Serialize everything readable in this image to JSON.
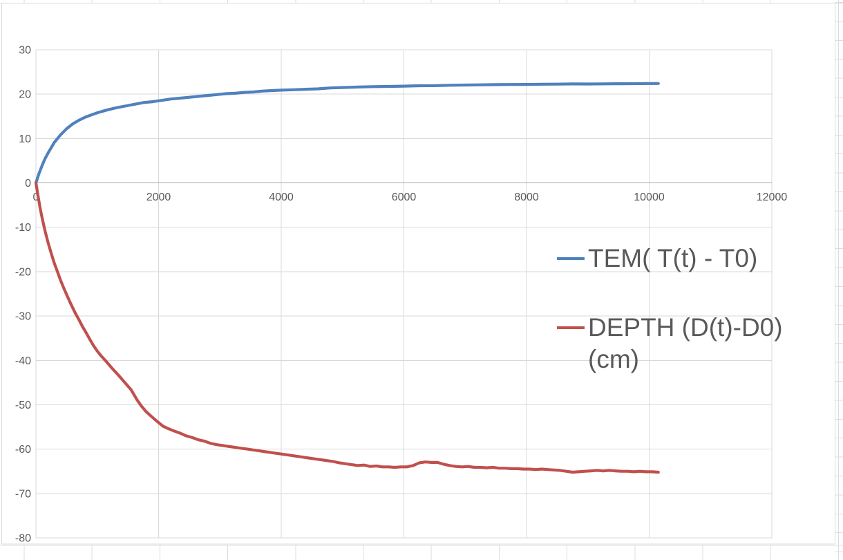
{
  "chart_data": {
    "type": "line",
    "title": "",
    "xlabel": "",
    "ylabel": "",
    "grid": true,
    "legend_position": "right-middle",
    "label_color": "#595959",
    "grid_color": "#D9D9D9",
    "axis_line_color": "#A6A6A6",
    "sheet_grid_color": "#DCDCDC",
    "x_axis": {
      "min": 0,
      "max": 12000,
      "tick_step": 2000,
      "tick_labels": [
        "0",
        "2000",
        "4000",
        "6000",
        "8000",
        "10000",
        "12000"
      ]
    },
    "y_axis": {
      "min": -80,
      "max": 30,
      "tick_step": 10,
      "tick_labels": [
        "30",
        "20",
        "10",
        "0",
        "-10",
        "-20",
        "-30",
        "-40",
        "-50",
        "-60",
        "-70",
        "-80"
      ]
    },
    "series": [
      {
        "name": "TEM( T(t) - T0)",
        "color": "#4F81BD",
        "points": [
          [
            0,
            0
          ],
          [
            50,
            2.1
          ],
          [
            100,
            3.9
          ],
          [
            150,
            5.5
          ],
          [
            200,
            6.8
          ],
          [
            300,
            9.1
          ],
          [
            400,
            10.8
          ],
          [
            500,
            12.2
          ],
          [
            600,
            13.3
          ],
          [
            700,
            14.1
          ],
          [
            800,
            14.8
          ],
          [
            900,
            15.3
          ],
          [
            1000,
            15.8
          ],
          [
            1150,
            16.4
          ],
          [
            1300,
            16.9
          ],
          [
            1450,
            17.3
          ],
          [
            1600,
            17.7
          ],
          [
            1750,
            18.1
          ],
          [
            1900,
            18.3
          ],
          [
            2050,
            18.6
          ],
          [
            2200,
            18.9
          ],
          [
            2350,
            19.1
          ],
          [
            2500,
            19.3
          ],
          [
            2650,
            19.5
          ],
          [
            2800,
            19.7
          ],
          [
            2950,
            19.9
          ],
          [
            3100,
            20.1
          ],
          [
            3250,
            20.2
          ],
          [
            3400,
            20.4
          ],
          [
            3550,
            20.5
          ],
          [
            3700,
            20.7
          ],
          [
            3850,
            20.8
          ],
          [
            4000,
            20.9
          ],
          [
            4200,
            21.0
          ],
          [
            4400,
            21.1
          ],
          [
            4600,
            21.2
          ],
          [
            4800,
            21.4
          ],
          [
            5000,
            21.5
          ],
          [
            5250,
            21.6
          ],
          [
            5500,
            21.7
          ],
          [
            5750,
            21.75
          ],
          [
            6000,
            21.8
          ],
          [
            6250,
            21.9
          ],
          [
            6500,
            21.92
          ],
          [
            6750,
            22.0
          ],
          [
            7000,
            22.05
          ],
          [
            7250,
            22.1
          ],
          [
            7500,
            22.15
          ],
          [
            7750,
            22.18
          ],
          [
            8000,
            22.2
          ],
          [
            8250,
            22.24
          ],
          [
            8500,
            22.26
          ],
          [
            8750,
            22.3
          ],
          [
            9000,
            22.28
          ],
          [
            9250,
            22.32
          ],
          [
            9500,
            22.35
          ],
          [
            9750,
            22.36
          ],
          [
            10000,
            22.4
          ],
          [
            10150,
            22.4
          ]
        ]
      },
      {
        "name": "DEPTH (D(t)-D0) (cm)",
        "color": "#C0504D",
        "points": [
          [
            0,
            0
          ],
          [
            30,
            -2.6
          ],
          [
            70,
            -5.8
          ],
          [
            110,
            -8.5
          ],
          [
            150,
            -10.9
          ],
          [
            200,
            -13.6
          ],
          [
            250,
            -15.9
          ],
          [
            300,
            -18.1
          ],
          [
            350,
            -20.0
          ],
          [
            400,
            -21.9
          ],
          [
            460,
            -23.9
          ],
          [
            520,
            -25.8
          ],
          [
            580,
            -27.6
          ],
          [
            640,
            -29.3
          ],
          [
            700,
            -30.8
          ],
          [
            760,
            -32.4
          ],
          [
            820,
            -33.8
          ],
          [
            880,
            -35.3
          ],
          [
            940,
            -36.7
          ],
          [
            1000,
            -37.9
          ],
          [
            1070,
            -39.1
          ],
          [
            1150,
            -40.3
          ],
          [
            1250,
            -41.9
          ],
          [
            1350,
            -43.4
          ],
          [
            1450,
            -45.0
          ],
          [
            1550,
            -46.6
          ],
          [
            1650,
            -48.9
          ],
          [
            1720,
            -50.3
          ],
          [
            1800,
            -51.6
          ],
          [
            1890,
            -52.7
          ],
          [
            1980,
            -53.8
          ],
          [
            2070,
            -54.8
          ],
          [
            2160,
            -55.4
          ],
          [
            2250,
            -55.9
          ],
          [
            2350,
            -56.4
          ],
          [
            2450,
            -57.0
          ],
          [
            2550,
            -57.4
          ],
          [
            2650,
            -57.9
          ],
          [
            2750,
            -58.2
          ],
          [
            2850,
            -58.7
          ],
          [
            2950,
            -59.0
          ],
          [
            3050,
            -59.2
          ],
          [
            3150,
            -59.4
          ],
          [
            3250,
            -59.6
          ],
          [
            3350,
            -59.8
          ],
          [
            3450,
            -60.0
          ],
          [
            3550,
            -60.2
          ],
          [
            3650,
            -60.4
          ],
          [
            3750,
            -60.6
          ],
          [
            3850,
            -60.8
          ],
          [
            3950,
            -61.0
          ],
          [
            4050,
            -61.2
          ],
          [
            4150,
            -61.4
          ],
          [
            4250,
            -61.6
          ],
          [
            4350,
            -61.8
          ],
          [
            4450,
            -62.0
          ],
          [
            4550,
            -62.2
          ],
          [
            4650,
            -62.4
          ],
          [
            4750,
            -62.6
          ],
          [
            4850,
            -62.8
          ],
          [
            4950,
            -63.1
          ],
          [
            5050,
            -63.3
          ],
          [
            5150,
            -63.5
          ],
          [
            5250,
            -63.7
          ],
          [
            5350,
            -63.6
          ],
          [
            5450,
            -63.9
          ],
          [
            5550,
            -63.8
          ],
          [
            5650,
            -64.0
          ],
          [
            5750,
            -64.0
          ],
          [
            5850,
            -64.1
          ],
          [
            5950,
            -64.0
          ],
          [
            6050,
            -64.0
          ],
          [
            6150,
            -63.7
          ],
          [
            6250,
            -63.1
          ],
          [
            6350,
            -62.9
          ],
          [
            6450,
            -63.0
          ],
          [
            6550,
            -63.0
          ],
          [
            6650,
            -63.4
          ],
          [
            6750,
            -63.7
          ],
          [
            6850,
            -63.9
          ],
          [
            6950,
            -64.0
          ],
          [
            7050,
            -63.9
          ],
          [
            7150,
            -64.1
          ],
          [
            7250,
            -64.1
          ],
          [
            7350,
            -64.2
          ],
          [
            7450,
            -64.1
          ],
          [
            7550,
            -64.3
          ],
          [
            7650,
            -64.3
          ],
          [
            7750,
            -64.4
          ],
          [
            7850,
            -64.4
          ],
          [
            7950,
            -64.5
          ],
          [
            8050,
            -64.5
          ],
          [
            8150,
            -64.6
          ],
          [
            8250,
            -64.5
          ],
          [
            8350,
            -64.6
          ],
          [
            8450,
            -64.7
          ],
          [
            8550,
            -64.8
          ],
          [
            8650,
            -65.0
          ],
          [
            8750,
            -65.2
          ],
          [
            8850,
            -65.1
          ],
          [
            8950,
            -65.0
          ],
          [
            9050,
            -64.9
          ],
          [
            9150,
            -64.8
          ],
          [
            9250,
            -64.9
          ],
          [
            9350,
            -64.8
          ],
          [
            9450,
            -64.9
          ],
          [
            9550,
            -65.0
          ],
          [
            9650,
            -65.0
          ],
          [
            9750,
            -65.1
          ],
          [
            9850,
            -65.0
          ],
          [
            9950,
            -65.1
          ],
          [
            10050,
            -65.1
          ],
          [
            10150,
            -65.2
          ]
        ]
      }
    ]
  },
  "legend": {
    "entries": [
      {
        "label": "TEM( T(t) - T0)",
        "lines": [
          "TEM( T(t) - T0)"
        ],
        "color": "#4F81BD"
      },
      {
        "label": "DEPTH (D(t)-D0) (cm)",
        "lines": [
          "DEPTH (D(t)-D0)",
          "(cm)"
        ],
        "color": "#C0504D"
      }
    ]
  }
}
